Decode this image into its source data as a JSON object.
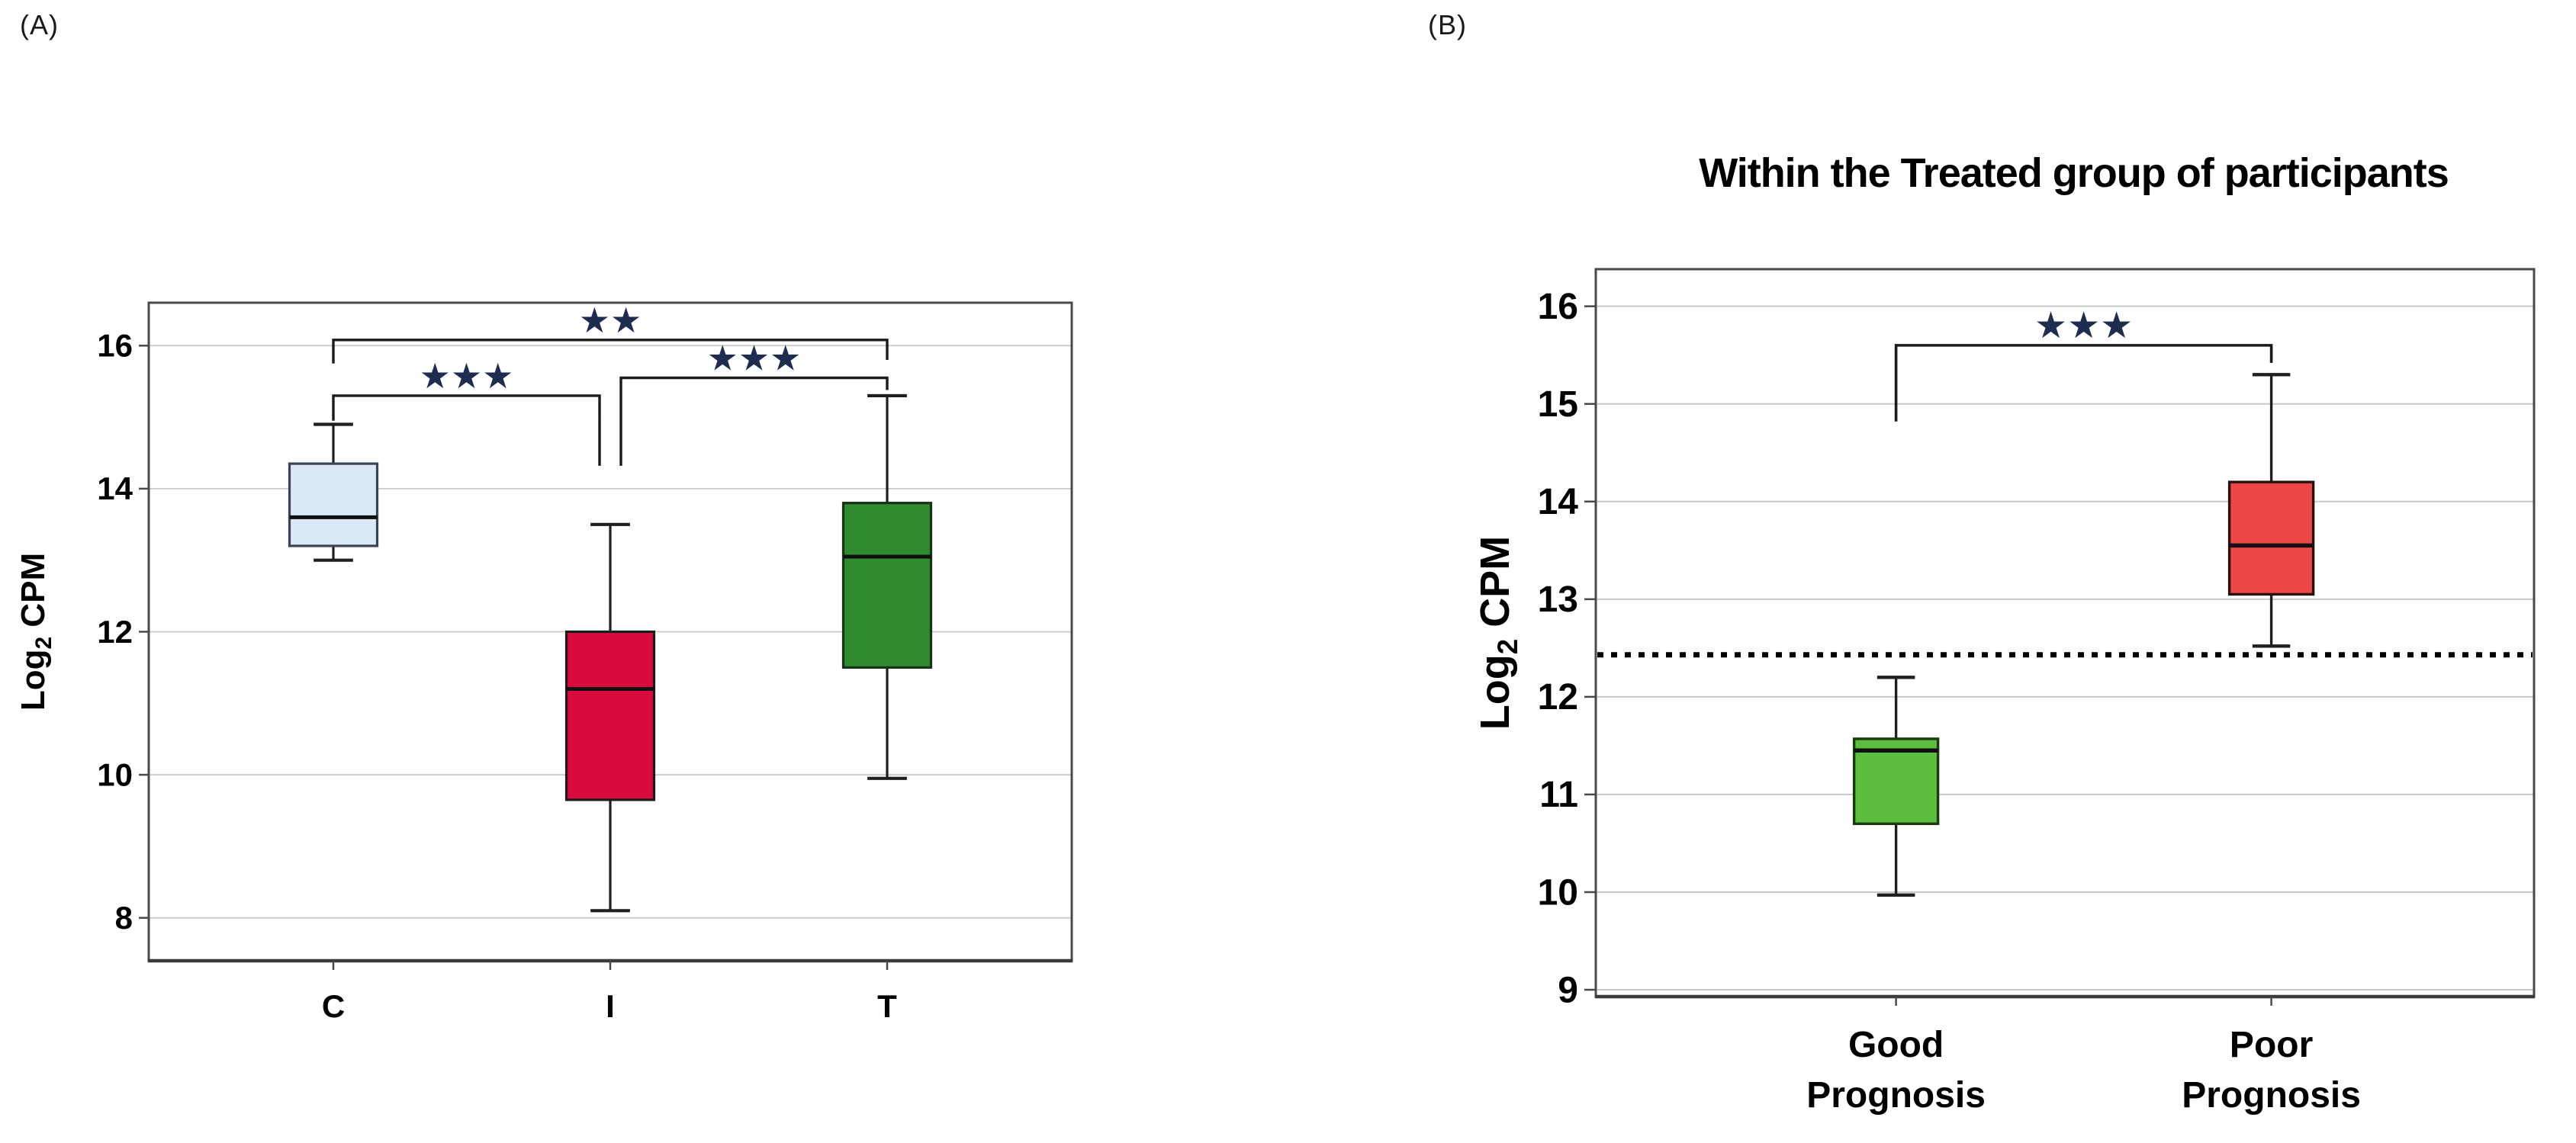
{
  "figure": {
    "panel_a_letter": "(A)",
    "panel_b_letter": "(B)",
    "panel_b_title": "Within the Treated group of participants"
  },
  "colors": {
    "grid": "#c9c9c9",
    "frame": "#4a4a4a",
    "whisker": "#1f1f1f",
    "median": "#101010",
    "bracket": "#1b1b1b",
    "stars": "#1e2d4f",
    "reference_line": "#000000",
    "text": "#000000"
  },
  "chart_data": [
    {
      "type": "boxplot",
      "panel_label": "(A)",
      "title": "",
      "ylabel": {
        "main": "Log",
        "sub": "2",
        "rest": " CPM"
      },
      "ylim": [
        7.4,
        16.6
      ],
      "yticks": [
        8,
        10,
        12,
        14,
        16
      ],
      "grid": true,
      "categories": [
        "C",
        "I",
        "T"
      ],
      "boxes": [
        {
          "category": "C",
          "fill": "#dbe8f5",
          "border": "#3a4556",
          "whisker_low": 13.0,
          "q1": 13.2,
          "median": 13.6,
          "q3": 14.35,
          "whisker_high": 14.9
        },
        {
          "category": "I",
          "fill": "#d90b3c",
          "border": "#1c1c1c",
          "whisker_low": 8.1,
          "q1": 9.65,
          "median": 11.2,
          "q3": 12.0,
          "whisker_high": 13.5
        },
        {
          "category": "T",
          "fill": "#2e8b2e",
          "border": "#173317",
          "whisker_low": 9.95,
          "q1": 11.5,
          "median": 13.05,
          "q3": 13.8,
          "whisker_high": 15.3
        }
      ],
      "significance": [
        {
          "from": "C",
          "to": "I",
          "label": "***",
          "y": 15.3,
          "leg_from": 14.95,
          "leg_to": 14.32,
          "dx1": 0,
          "dx2": -14
        },
        {
          "from": "I",
          "to": "T",
          "label": "***",
          "y": 15.55,
          "leg_from": 14.32,
          "leg_to": 15.38,
          "dx1": 14,
          "dx2": 0
        },
        {
          "from": "C",
          "to": "T",
          "label": "**",
          "y": 16.08,
          "leg_from": 15.75,
          "leg_to": 15.8,
          "dx1": 0,
          "dx2": 0
        }
      ]
    },
    {
      "type": "boxplot",
      "panel_label": "(B)",
      "title": "Within the Treated group of participants",
      "ylabel": {
        "main": "Log",
        "sub": "2",
        "rest": " CPM"
      },
      "ylim": [
        8.93,
        16.38
      ],
      "yticks": [
        9,
        10,
        11,
        12,
        13,
        14,
        15,
        16
      ],
      "grid": true,
      "categories": [
        "Good Prognosis",
        "Poor Prognosis"
      ],
      "boxes": [
        {
          "category": "Good Prognosis",
          "fill": "#5cbe3f",
          "border": "#1c3a10",
          "whisker_low": 9.97,
          "q1": 10.7,
          "median": 11.45,
          "q3": 11.57,
          "whisker_high": 12.2
        },
        {
          "category": "Poor Prognosis",
          "fill": "#ee4545",
          "border": "#2a0f0f",
          "whisker_low": 12.52,
          "q1": 13.05,
          "median": 13.55,
          "q3": 14.2,
          "whisker_high": 15.3
        }
      ],
      "reference_line": {
        "y": 12.43,
        "style": "dotted"
      },
      "significance": [
        {
          "from": "Good Prognosis",
          "to": "Poor Prognosis",
          "label": "***",
          "y": 15.6,
          "leg_from": 14.82,
          "leg_to": 15.42,
          "dx1": 0,
          "dx2": 0
        }
      ]
    }
  ]
}
